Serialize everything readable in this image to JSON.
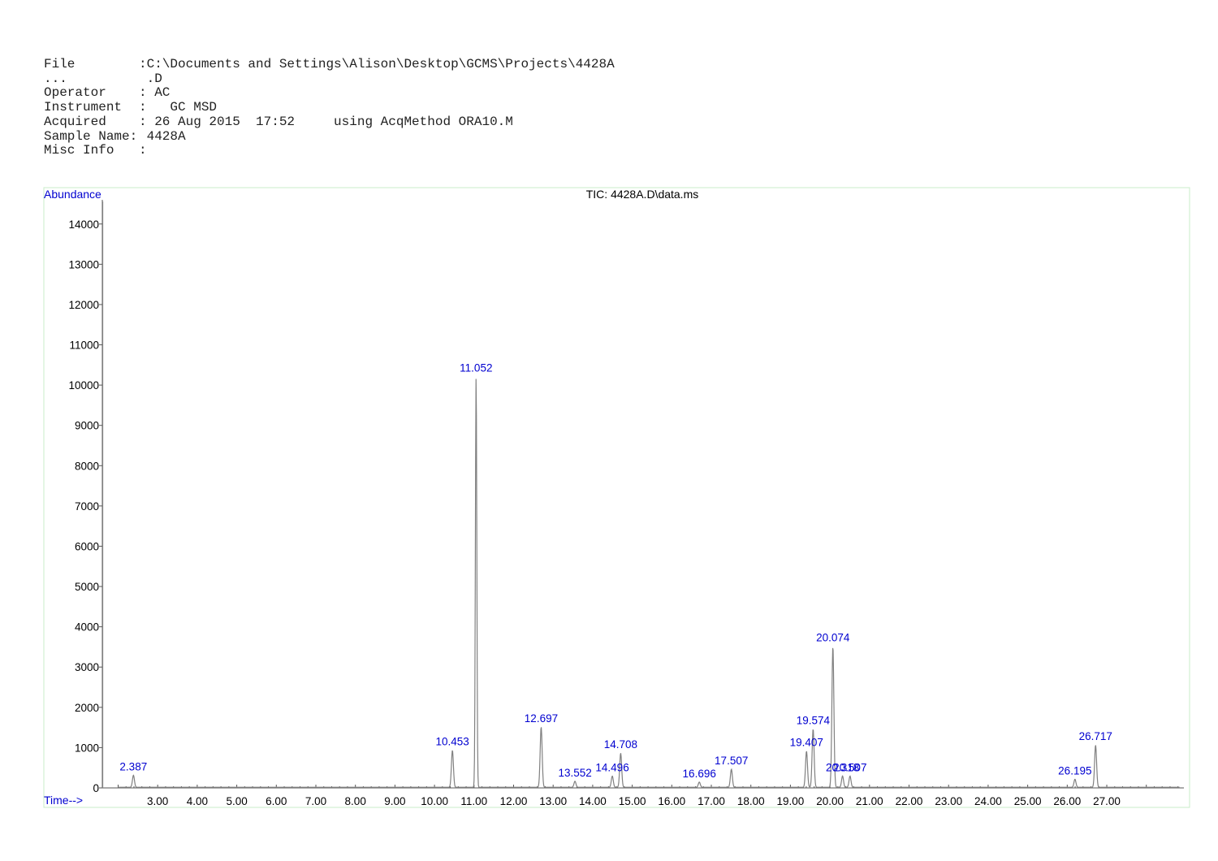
{
  "header": {
    "file_label": "File",
    "file_value": ":C:\\Documents and Settings\\Alison\\Desktop\\GCMS\\Projects\\4428A",
    "cont_label": "...",
    "cont_value": " .D",
    "operator_label": "Operator",
    "operator_value": ": AC",
    "instrument_label": "Instrument",
    "instrument_value": ":   GC MSD",
    "acquired_label": "Acquired",
    "acquired_value": ": 26 Aug 2015  17:52     using AcqMethod ORA10.M",
    "sample_label": "Sample Name:",
    "sample_value": " 4428A",
    "misc_label": "Misc Info",
    "misc_value": ":"
  },
  "chart_data": {
    "type": "line",
    "title": "TIC: 4428A.D\\data.ms",
    "ylabel": "Abundance",
    "xlabel": "Time-->",
    "xlim": [
      1.6,
      28.95
    ],
    "ylim": [
      0,
      14600
    ],
    "x_ticks": [
      3,
      4,
      5,
      6,
      7,
      8,
      9,
      10,
      11,
      12,
      13,
      14,
      15,
      16,
      17,
      18,
      19,
      20,
      21,
      22,
      23,
      24,
      25,
      26,
      27
    ],
    "x_tick_labels": [
      "3.00",
      "4.00",
      "5.00",
      "6.00",
      "7.00",
      "8.00",
      "9.00",
      "10.00",
      "11.00",
      "12.00",
      "13.00",
      "14.00",
      "15.00",
      "16.00",
      "17.00",
      "18.00",
      "19.00",
      "20.00",
      "21.00",
      "22.00",
      "23.00",
      "24.00",
      "25.00",
      "26.00",
      "27.00"
    ],
    "y_ticks": [
      0,
      1000,
      2000,
      3000,
      4000,
      5000,
      6000,
      7000,
      8000,
      9000,
      10000,
      11000,
      12000,
      13000,
      14000
    ],
    "y_tick_labels": [
      "0",
      "1000",
      "2000",
      "3000",
      "4000",
      "5000",
      "6000",
      "7000",
      "8000",
      "9000",
      "10000",
      "11000",
      "12000",
      "13000",
      "14000"
    ],
    "peaks": [
      {
        "rt": 2.387,
        "label": "2.387",
        "height": 300
      },
      {
        "rt": 10.453,
        "label": "10.453",
        "height": 920
      },
      {
        "rt": 11.052,
        "label": "11.052",
        "height": 10200
      },
      {
        "rt": 12.697,
        "label": "12.697",
        "height": 1500
      },
      {
        "rt": 13.552,
        "label": "13.552",
        "height": 150
      },
      {
        "rt": 14.496,
        "label": "14.496",
        "height": 280
      },
      {
        "rt": 14.708,
        "label": "14.708",
        "height": 850
      },
      {
        "rt": 16.696,
        "label": "16.696",
        "height": 130
      },
      {
        "rt": 17.507,
        "label": "17.507",
        "height": 450
      },
      {
        "rt": 19.407,
        "label": "19.407",
        "height": 900
      },
      {
        "rt": 19.574,
        "label": "19.574",
        "height": 1450
      },
      {
        "rt": 20.074,
        "label": "20.074",
        "height": 3500
      },
      {
        "rt": 20.318,
        "label": "20.318",
        "height": 280
      },
      {
        "rt": 20.507,
        "label": "20.507",
        "height": 280
      },
      {
        "rt": 26.195,
        "label": "26.195",
        "height": 200
      },
      {
        "rt": 26.717,
        "label": "26.717",
        "height": 1050
      }
    ],
    "colors": {
      "trace": "#808080",
      "peak_label": "#0000d0",
      "frame": "#c8ecc8"
    }
  }
}
